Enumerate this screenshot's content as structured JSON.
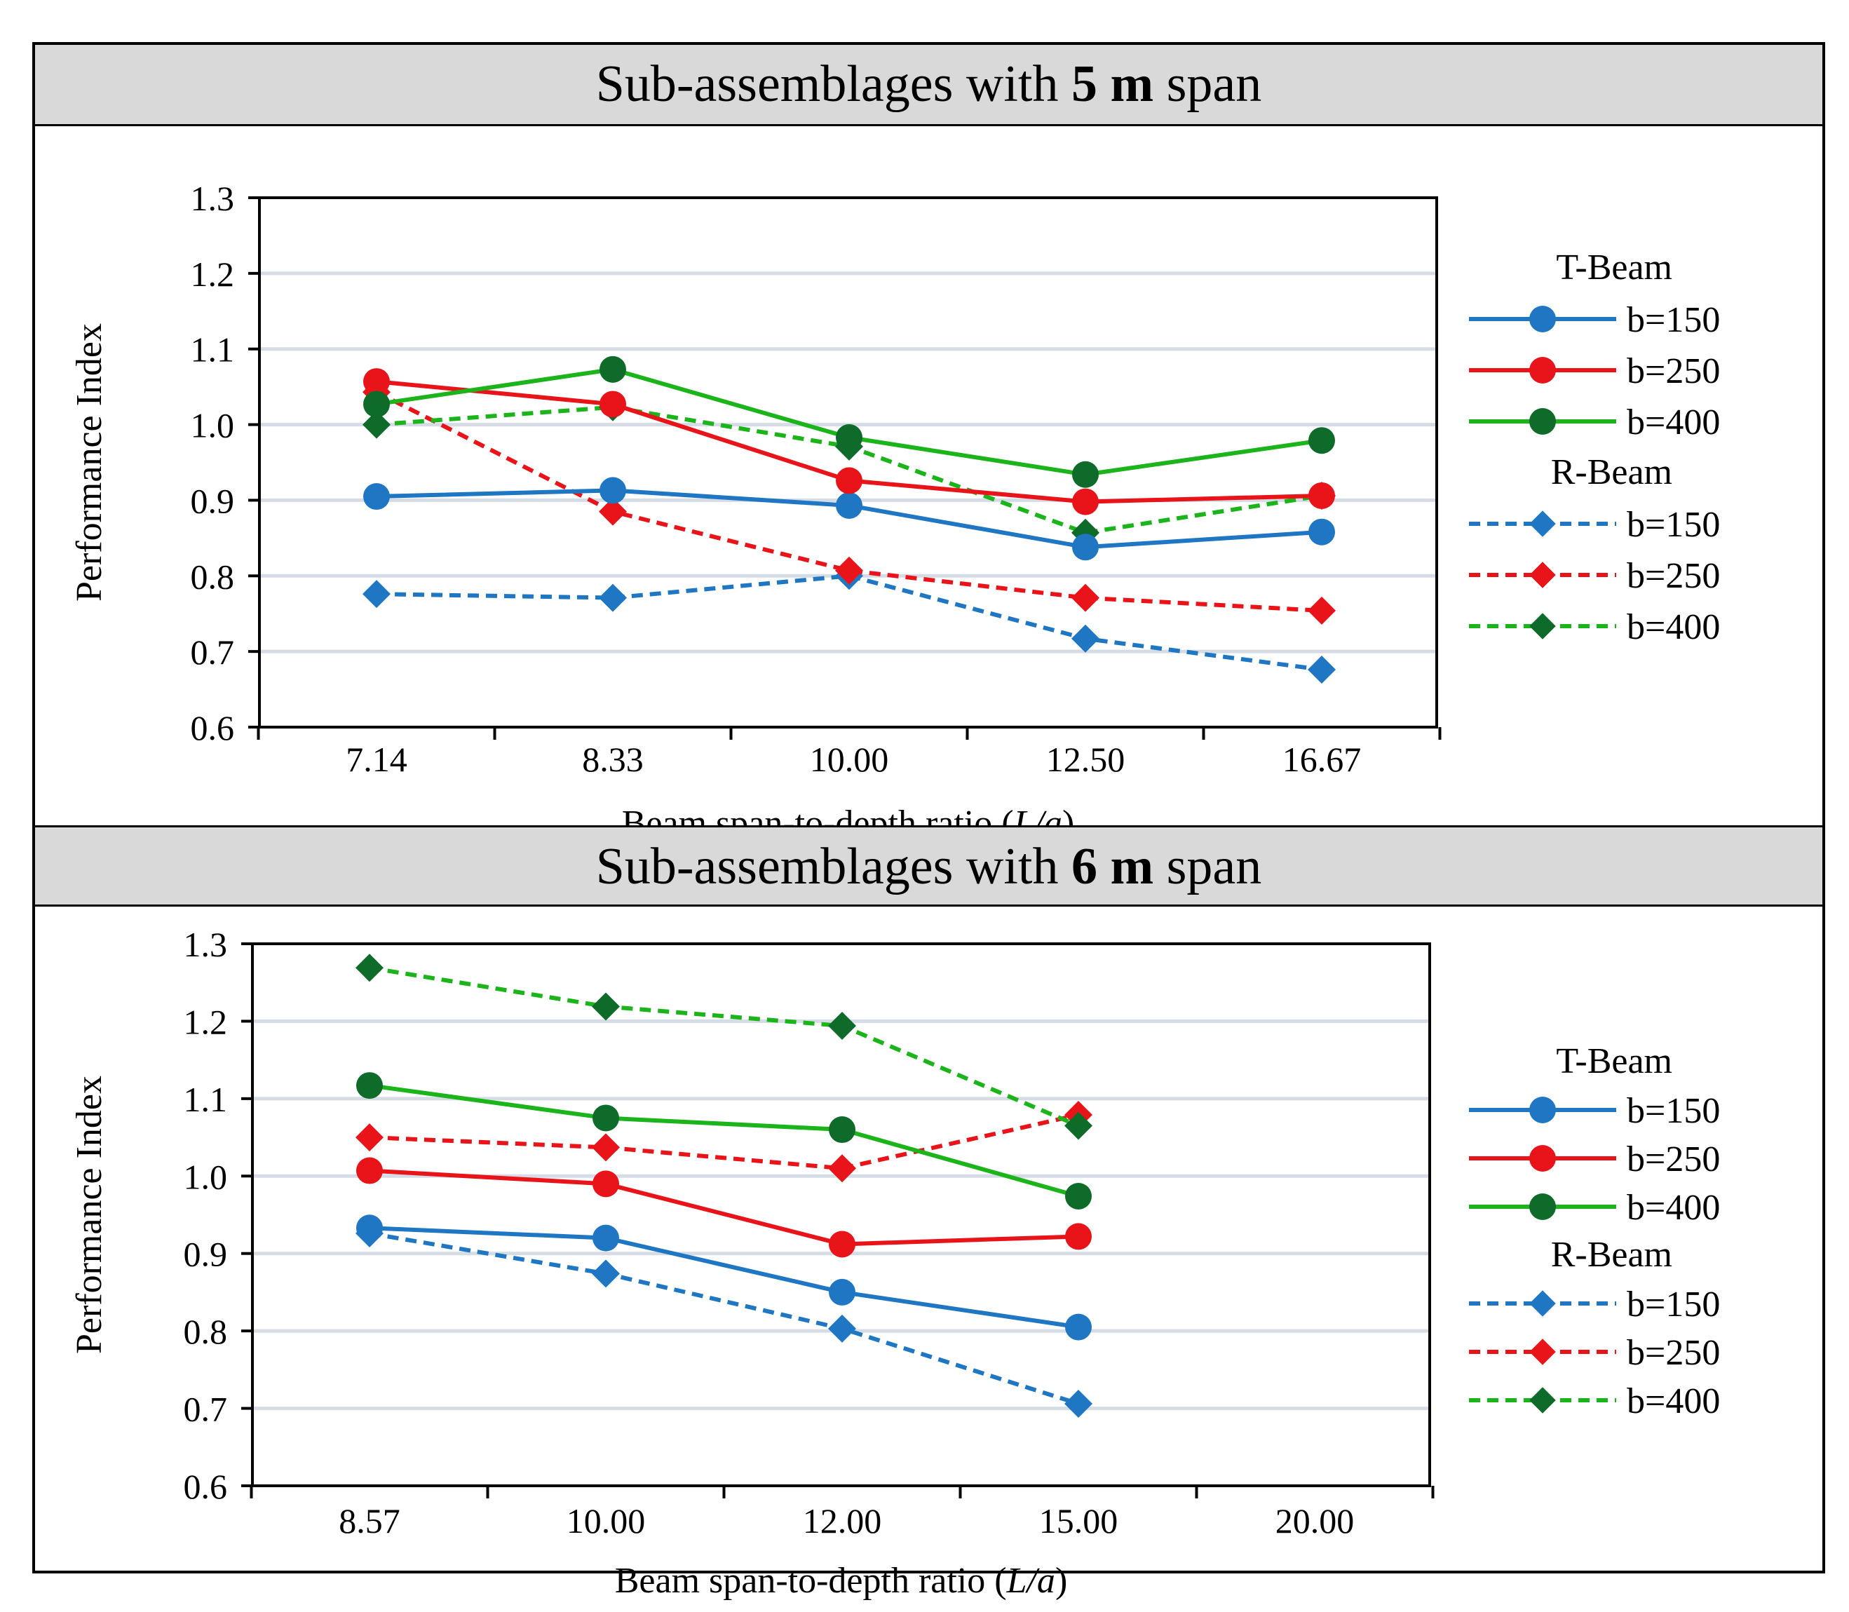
{
  "chart_data": [
    {
      "type": "line",
      "title": {
        "pre": "Sub-assemblages with ",
        "bold": "5 m",
        "post": " span"
      },
      "xlabel": {
        "pre": "Beam span-to-depth ratio (",
        "italic": "L/a",
        "post": ")"
      },
      "ylabel": "Performance Index",
      "categories": [
        "7.14",
        "8.33",
        "10.00",
        "12.50",
        "16.67"
      ],
      "yticks": [
        "0.6",
        "0.7",
        "0.8",
        "0.9",
        "1.0",
        "1.1",
        "1.2",
        "1.3"
      ],
      "ylim": [
        0.6,
        1.3
      ],
      "grid": true,
      "legend_position": "right",
      "legend_groups": [
        "T-Beam",
        "R-Beam"
      ],
      "series": [
        {
          "name": "b=150",
          "group": "T-Beam",
          "color": "#1f77c4",
          "marker": "circle",
          "dash": false,
          "values": [
            0.905,
            0.913,
            0.893,
            0.838,
            0.858
          ]
        },
        {
          "name": "b=250",
          "group": "T-Beam",
          "color": "#e8141a",
          "marker": "circle",
          "dash": false,
          "values": [
            1.057,
            1.027,
            0.926,
            0.898,
            0.906
          ]
        },
        {
          "name": "b=400",
          "group": "T-Beam",
          "color": "#1bb51b",
          "marker": "circle-dark",
          "dash": false,
          "values": [
            1.027,
            1.073,
            0.983,
            0.934,
            0.979
          ]
        },
        {
          "name": "b=150",
          "group": "R-Beam",
          "color": "#1f77c4",
          "marker": "diamond",
          "dash": true,
          "values": [
            0.776,
            0.771,
            0.8,
            0.717,
            0.676
          ]
        },
        {
          "name": "b=250",
          "group": "R-Beam",
          "color": "#e8141a",
          "marker": "diamond",
          "dash": true,
          "values": [
            1.043,
            0.885,
            0.807,
            0.771,
            0.754
          ]
        },
        {
          "name": "b=400",
          "group": "R-Beam",
          "color": "#1bb51b",
          "marker": "diamond-dark",
          "dash": true,
          "values": [
            1.0,
            1.023,
            0.971,
            0.857,
            0.906
          ]
        }
      ]
    },
    {
      "type": "line",
      "title": {
        "pre": "Sub-assemblages with ",
        "bold": "6 m",
        "post": " span"
      },
      "xlabel": {
        "pre": "Beam span-to-depth ratio (",
        "italic": "L/a",
        "post": ")"
      },
      "ylabel": "Performance Index",
      "categories": [
        "8.57",
        "10.00",
        "12.00",
        "15.00",
        "20.00"
      ],
      "yticks": [
        "0.6",
        "0.7",
        "0.8",
        "0.9",
        "1.0",
        "1.1",
        "1.2",
        "1.3"
      ],
      "ylim": [
        0.6,
        1.3
      ],
      "grid": true,
      "legend_position": "right",
      "legend_groups": [
        "T-Beam",
        "R-Beam"
      ],
      "series": [
        {
          "name": "b=150",
          "group": "T-Beam",
          "color": "#1f77c4",
          "marker": "circle",
          "dash": false,
          "values": [
            0.933,
            0.92,
            0.85,
            0.805,
            null
          ]
        },
        {
          "name": "b=250",
          "group": "T-Beam",
          "color": "#e8141a",
          "marker": "circle",
          "dash": false,
          "values": [
            1.007,
            0.99,
            0.912,
            0.922,
            null
          ]
        },
        {
          "name": "b=400",
          "group": "T-Beam",
          "color": "#1bb51b",
          "marker": "circle-dark",
          "dash": false,
          "values": [
            1.117,
            1.075,
            1.06,
            0.974,
            null
          ]
        },
        {
          "name": "b=150",
          "group": "R-Beam",
          "color": "#1f77c4",
          "marker": "diamond",
          "dash": true,
          "values": [
            0.926,
            0.874,
            0.803,
            0.706,
            null
          ]
        },
        {
          "name": "b=250",
          "group": "R-Beam",
          "color": "#e8141a",
          "marker": "diamond",
          "dash": true,
          "values": [
            1.05,
            1.037,
            1.01,
            1.079,
            null
          ]
        },
        {
          "name": "b=400",
          "group": "R-Beam",
          "color": "#1bb51b",
          "marker": "diamond-dark",
          "dash": true,
          "values": [
            1.269,
            1.219,
            1.194,
            1.065,
            null
          ]
        }
      ]
    }
  ]
}
